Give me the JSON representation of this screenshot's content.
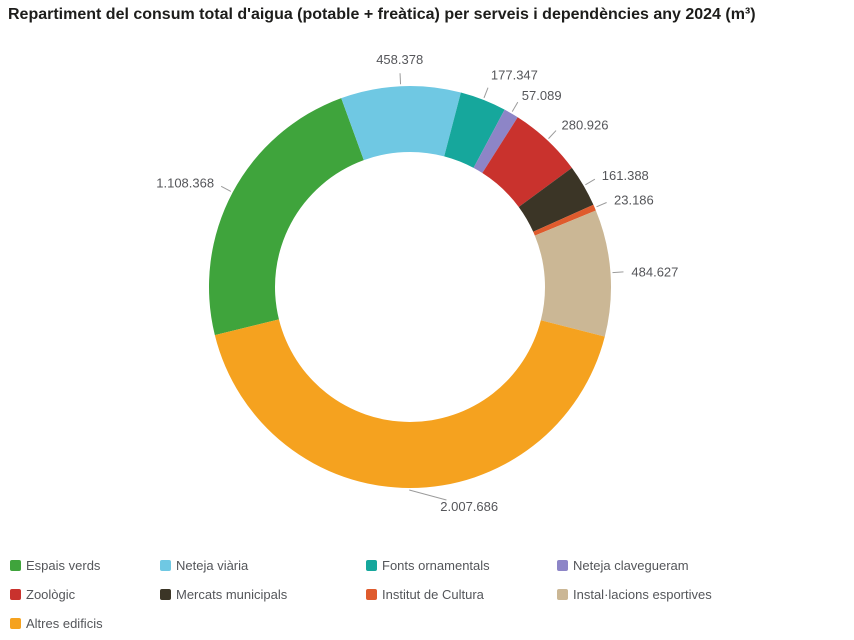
{
  "chart_data": {
    "type": "pie",
    "subtype": "donut",
    "title": "Repartiment del consum total d'aigua (potable + freàtica) per serveis i dependències any 2024 (m³)",
    "unit": "m³",
    "legend_position": "bottom",
    "start_angle_deg": 256.15,
    "series": [
      {
        "name": "Espais verds",
        "value": 1108368,
        "label": "1.108.368",
        "color": "#3fa43c"
      },
      {
        "name": "Neteja viària",
        "value": 458378,
        "label": "458.378",
        "color": "#6fc8e3"
      },
      {
        "name": "Fonts ornamentals",
        "value": 177347,
        "label": "177.347",
        "color": "#16a79c"
      },
      {
        "name": "Neteja clavegueram",
        "value": 57089,
        "label": "57.089",
        "color": "#8d85c7"
      },
      {
        "name": "Zoològic",
        "value": 280926,
        "label": "280.926",
        "color": "#c9322d"
      },
      {
        "name": "Mercats municipals",
        "value": 161388,
        "label": "161.388",
        "color": "#3b3526"
      },
      {
        "name": "Institut de Cultura",
        "value": 23186,
        "label": "23.186",
        "color": "#df5b2d"
      },
      {
        "name": "Instal·lacions esportives",
        "value": 484627,
        "label": "484.627",
        "color": "#cbb795"
      },
      {
        "name": "Altres edificis",
        "value": 2007686,
        "label": "2.007.686",
        "color": "#f5a21f"
      }
    ],
    "colors": {
      "data_label_text": "#55565a",
      "legend_text": "#54565a",
      "connector_line": "#9b9b9b",
      "title_text": "#1d1d1b",
      "background": "#ffffff"
    }
  }
}
